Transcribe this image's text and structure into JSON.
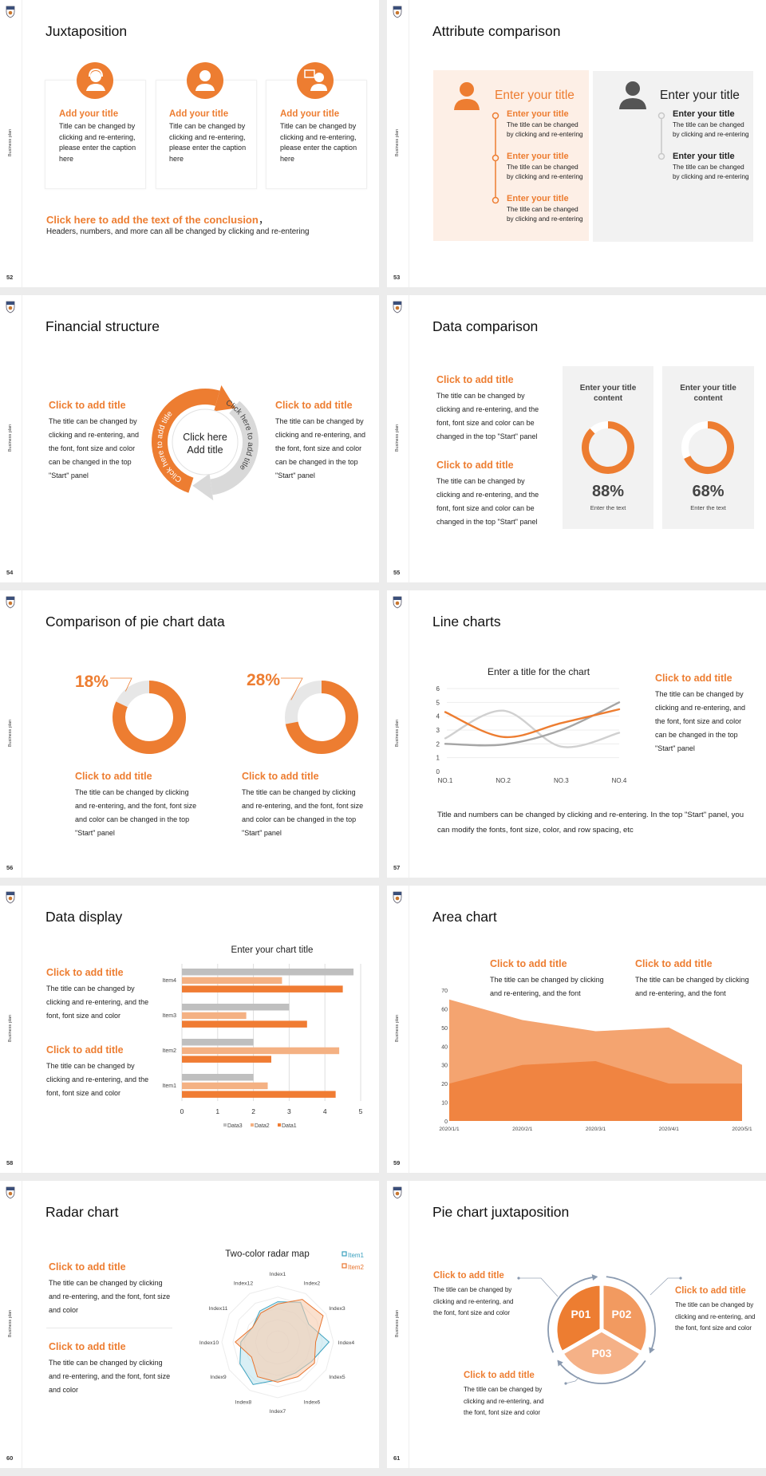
{
  "deck": {
    "side_label": "Business plan"
  },
  "colors": {
    "accent": "#ED7D31",
    "accent_light": "#F4B183",
    "gray": "#BFBFBF",
    "panel_orange": "#FDEFE6",
    "panel_gray": "#F2F2F2",
    "teal": "#3AA0BE"
  },
  "slides": {
    "s52": {
      "page": "52",
      "title": "Juxtaposition",
      "cards": [
        {
          "icon": "customer-service-icon",
          "title": "Add your title",
          "body": "Title can be changed by clicking and re-entering, please enter the caption here"
        },
        {
          "icon": "staff-person-icon",
          "title": "Add your title",
          "body": "Title can be changed by clicking and re-entering, please enter the caption here"
        },
        {
          "icon": "presenter-icon",
          "title": "Add your title",
          "body": "Title can be changed by clicking and re-entering, please enter the caption here"
        }
      ],
      "conclusion_title": "Click here to add the text of the conclusion",
      "conclusion_comma": "，",
      "conclusion_body": "Headers, numbers, and more can all be changed by clicking and re-entering"
    },
    "s53": {
      "page": "53",
      "title": "Attribute comparison",
      "left": {
        "heading": "Enter your title",
        "items": [
          {
            "title": "Enter your title",
            "body": "The title can be changed by clicking and re-entering"
          },
          {
            "title": "Enter your title",
            "body": "The title can be changed by clicking and re-entering"
          },
          {
            "title": "Enter your title",
            "body": "The title can be changed by clicking and re-entering"
          }
        ]
      },
      "right": {
        "heading": "Enter your title",
        "items": [
          {
            "title": "Enter your title",
            "body": "The title can be changed by clicking and re-entering"
          },
          {
            "title": "Enter your title",
            "body": "The title can be changed by clicking and re-entering"
          }
        ]
      }
    },
    "s54": {
      "page": "54",
      "title": "Financial structure",
      "left": {
        "title": "Click to add title",
        "body": "The title can be changed by clicking and re-entering, and the font, font size and color can be changed in the top \"Start\" panel"
      },
      "right": {
        "title": "Click to add title",
        "body": "The title can be changed by clicking and re-entering, and the font, font size and color can be changed in the top \"Start\" panel"
      },
      "center_line1": "Click here",
      "center_line2": "Add title",
      "arc_orange_text": "Click here to add title",
      "arc_gray_text": "Click here to add title"
    },
    "s55": {
      "page": "55",
      "title": "Data comparison",
      "blocks": [
        {
          "title": "Click to add title",
          "body": "The title can be changed by clicking and re-entering, and the font, font size and color can be changed in the top \"Start\" panel"
        },
        {
          "title": "Click to add title",
          "body": "The title can be changed by clicking and re-entering, and the font, font size and color can be changed in the top \"Start\" panel"
        }
      ],
      "panels": [
        {
          "title": "Enter your title content",
          "value": 88,
          "value_label": "88%",
          "caption": "Enter the text"
        },
        {
          "title": "Enter your title content",
          "value": 68,
          "value_label": "68%",
          "caption": "Enter the text"
        }
      ]
    },
    "s56": {
      "page": "56",
      "title": "Comparison of pie chart data",
      "charts": [
        {
          "value": 18,
          "label": "18%",
          "title": "Click to add title",
          "body": "The title can be changed by clicking and re-entering, and the font, font size and color can be changed in the top \"Start\" panel"
        },
        {
          "value": 28,
          "label": "28%",
          "title": "Click to add title",
          "body": "The title can be changed by clicking and re-entering, and the font, font size and color can be changed in the top \"Start\" panel"
        }
      ]
    },
    "s57": {
      "page": "57",
      "title": "Line charts",
      "side": {
        "title": "Click to add title",
        "body": "The title can be changed by clicking and re-entering, and the font, font size and color can be changed in the top \"Start\" panel"
      },
      "footer": "Title and numbers can be changed by clicking and re-entering. In the top \"Start\" panel, you can modify the fonts, font size, color, and row spacing, etc"
    },
    "s58": {
      "page": "58",
      "title": "Data display",
      "blocks": [
        {
          "title": "Click to add title",
          "body": "The title can be changed by clicking and re-entering, and the font, font size and color"
        },
        {
          "title": "Click to add title",
          "body": "The title can be changed by clicking and re-entering, and the font, font size and color"
        }
      ]
    },
    "s59": {
      "page": "59",
      "title": "Area chart",
      "blocks": [
        {
          "title": "Click to add title",
          "body": "The title can be changed by clicking and re-entering, and the font"
        },
        {
          "title": "Click to add title",
          "body": "The title can be changed by clicking and re-entering, and the font"
        }
      ]
    },
    "s60": {
      "page": "60",
      "title": "Radar chart",
      "blocks": [
        {
          "title": "Click to add title",
          "body": "The title can be changed by clicking and re-entering, and the font, font size and color"
        },
        {
          "title": "Click to add title",
          "body": "The title can be changed by clicking and re-entering, and the font, font size and color"
        }
      ]
    },
    "s61": {
      "page": "61",
      "title": "Pie chart juxtaposition",
      "segments": [
        "P01",
        "P02",
        "P03"
      ],
      "blocks": [
        {
          "title": "Click to add title",
          "body": "The title can be changed by clicking and re-entering, and the font, font size and color"
        },
        {
          "title": "Click to add title",
          "body": "The title can be changed by clicking and re-entering, and the font, font size and color"
        },
        {
          "title": "Click to add title",
          "body": "The title can be changed by clicking and re-entering, and the font, font size and color"
        }
      ]
    }
  },
  "chart_data": [
    {
      "id": "line",
      "type": "line",
      "title": "Enter a title for the chart",
      "categories": [
        "NO.1",
        "NO.2",
        "NO.3",
        "NO.4"
      ],
      "ylim": [
        0,
        6
      ],
      "yticks": [
        "0",
        "1",
        "2",
        "3",
        "4",
        "5",
        "6"
      ],
      "grid": true,
      "smooth": true,
      "series": [
        {
          "color": "#D0D0D0",
          "values": [
            2.4,
            4.4,
            1.8,
            2.8
          ]
        },
        {
          "color": "#A5A5A5",
          "values": [
            2.0,
            1.95,
            3.0,
            5.0
          ]
        },
        {
          "color": "#ED7D31",
          "values": [
            4.3,
            2.5,
            3.5,
            4.5
          ]
        }
      ]
    },
    {
      "id": "bar",
      "type": "bar",
      "orientation": "horizontal",
      "title": "Enter your chart title",
      "categories": [
        "Item1",
        "Item2",
        "Item3",
        "Item4"
      ],
      "xlim": [
        0,
        5
      ],
      "xticks": [
        "0",
        "1",
        "2",
        "3",
        "4",
        "5"
      ],
      "grid": true,
      "legend": "bottom",
      "series": [
        {
          "name": "Data3",
          "color": "#BFBFBF",
          "values": [
            2.0,
            2.0,
            3.0,
            4.8
          ]
        },
        {
          "name": "Data2",
          "color": "#F4B183",
          "values": [
            2.4,
            4.4,
            1.8,
            2.8
          ]
        },
        {
          "name": "Data1",
          "color": "#F07C33",
          "values": [
            4.3,
            2.5,
            3.5,
            4.5
          ]
        }
      ]
    },
    {
      "id": "area",
      "type": "area",
      "categories": [
        "2020/1/1",
        "2020/2/1",
        "2020/3/1",
        "2020/4/1",
        "2020/5/1"
      ],
      "ylim": [
        0,
        70
      ],
      "yticks": [
        "0",
        "10",
        "20",
        "30",
        "40",
        "50",
        "60",
        "70"
      ],
      "series": [
        {
          "color": "#F4A470",
          "values": [
            65,
            54,
            48,
            50,
            30
          ]
        },
        {
          "color": "#F08441",
          "values": [
            20,
            30,
            32,
            20,
            20
          ]
        }
      ]
    },
    {
      "id": "radar",
      "type": "radar",
      "title": "Two-color radar map",
      "legend": "top-right",
      "rmax": 5,
      "categories": [
        "Index1",
        "Index2",
        "Index3",
        "Index4",
        "Index5",
        "Index6",
        "Index7",
        "Index8",
        "Index9",
        "Index10",
        "Index11",
        "Index12"
      ],
      "series": [
        {
          "name": "Item1",
          "color": "#3AA0BE",
          "fill": "#BFE4EF",
          "values": [
            3.6,
            4.1,
            3.2,
            4.6,
            3.5,
            3.2,
            3.4,
            4.4,
            3.9,
            3.3,
            2.6,
            3.2
          ]
        },
        {
          "name": "Item2",
          "color": "#E8742E",
          "fill": "#F7CBAE",
          "values": [
            3.4,
            4.4,
            4.7,
            3.4,
            3.8,
            3.6,
            3.6,
            3.6,
            2.7,
            3.8,
            2.6,
            3.0
          ]
        }
      ]
    }
  ]
}
